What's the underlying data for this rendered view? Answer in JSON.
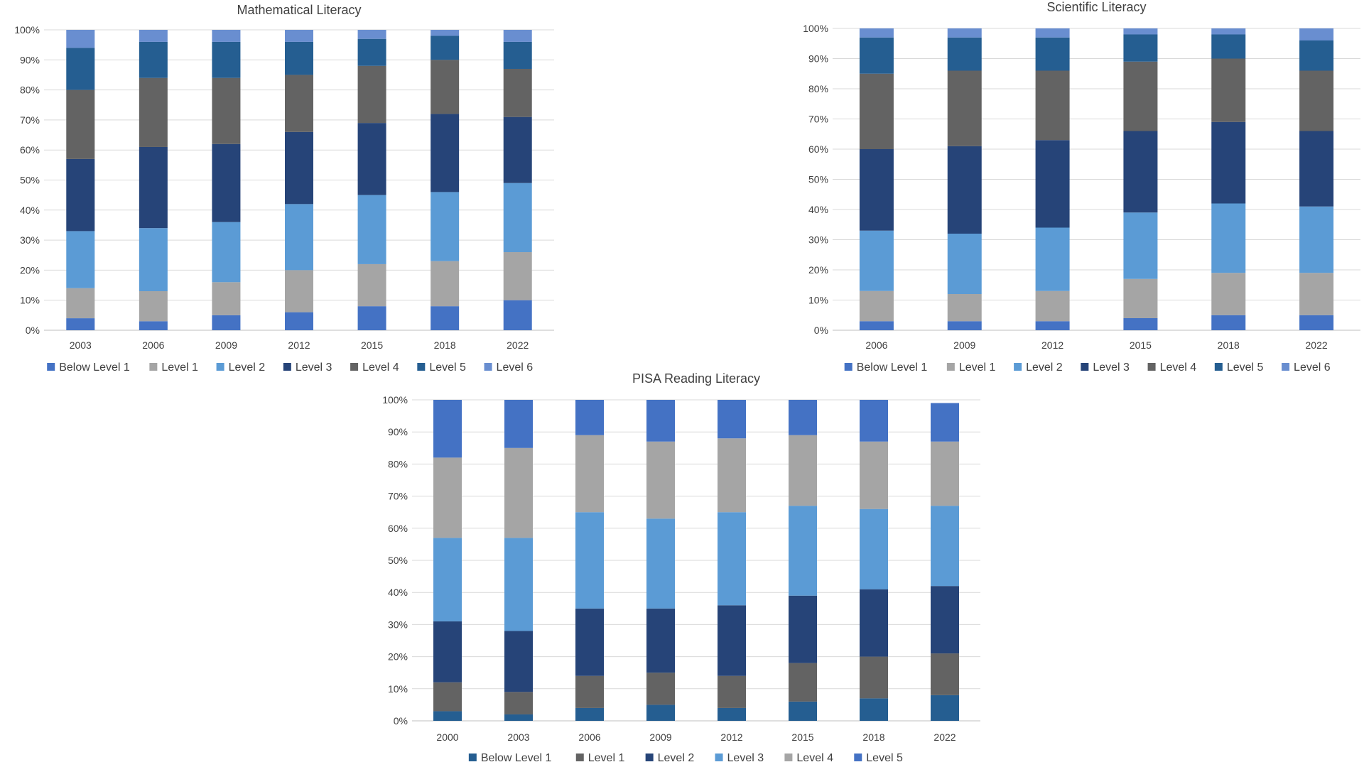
{
  "colors": {
    "below_level_1": "#4472C4",
    "level_1": "#A5A5A5",
    "level_2": "#5B9BD5",
    "level_3": "#264478",
    "level_4": "#636363",
    "level_5": "#255E91",
    "level_6": "#698ED0",
    "reading_below_level_1": "#255E91",
    "reading_level_1": "#636363",
    "reading_level_2": "#264478",
    "reading_level_3": "#5B9BD5",
    "reading_level_4": "#A5A5A5",
    "reading_level_5": "#4472C4",
    "gridline": "#D9D9D9",
    "axis": "#BFBFBF"
  },
  "chart_data": [
    {
      "id": "math",
      "type": "bar",
      "stacked": true,
      "title": "Mathematical Literacy",
      "categories": [
        "2003",
        "2006",
        "2009",
        "2012",
        "2015",
        "2018",
        "2022"
      ],
      "ylim": [
        0,
        100
      ],
      "y_ticks": [
        "0%",
        "10%",
        "20%",
        "30%",
        "40%",
        "50%",
        "60%",
        "70%",
        "80%",
        "90%",
        "100%"
      ],
      "grid": true,
      "legend_position": "bottom",
      "series": [
        {
          "name": "Below Level 1",
          "values": [
            4,
            3,
            5,
            6,
            8,
            8,
            10
          ]
        },
        {
          "name": "Level 1",
          "values": [
            10,
            10,
            11,
            14,
            14,
            15,
            16
          ]
        },
        {
          "name": "Level 2",
          "values": [
            19,
            21,
            20,
            22,
            23,
            23,
            23
          ]
        },
        {
          "name": "Level 3",
          "values": [
            24,
            27,
            26,
            24,
            24,
            26,
            22
          ]
        },
        {
          "name": "Level 4",
          "values": [
            23,
            23,
            22,
            19,
            19,
            18,
            16
          ]
        },
        {
          "name": "Level 5",
          "values": [
            14,
            12,
            12,
            11,
            9,
            8,
            9
          ]
        },
        {
          "name": "Level 6",
          "values": [
            6,
            4,
            4,
            4,
            3,
            2,
            4
          ]
        }
      ]
    },
    {
      "id": "science",
      "type": "bar",
      "stacked": true,
      "title": "Scientific Literacy",
      "categories": [
        "2006",
        "2009",
        "2012",
        "2015",
        "2018",
        "2022"
      ],
      "ylim": [
        0,
        100
      ],
      "y_ticks": [
        "0%",
        "10%",
        "20%",
        "30%",
        "40%",
        "50%",
        "60%",
        "70%",
        "80%",
        "90%",
        "100%"
      ],
      "grid": true,
      "legend_position": "bottom",
      "series": [
        {
          "name": "Below Level 1",
          "values": [
            3,
            3,
            3,
            4,
            5,
            5
          ]
        },
        {
          "name": "Level 1",
          "values": [
            10,
            9,
            10,
            13,
            14,
            14
          ]
        },
        {
          "name": "Level 2",
          "values": [
            20,
            20,
            21,
            22,
            23,
            22
          ]
        },
        {
          "name": "Level 3",
          "values": [
            27,
            29,
            29,
            27,
            27,
            25
          ]
        },
        {
          "name": "Level 4",
          "values": [
            25,
            25,
            23,
            23,
            21,
            20
          ]
        },
        {
          "name": "Level 5",
          "values": [
            12,
            11,
            11,
            9,
            8,
            10
          ]
        },
        {
          "name": "Level 6",
          "values": [
            3,
            3,
            3,
            2,
            2,
            4
          ]
        }
      ]
    },
    {
      "id": "reading",
      "type": "bar",
      "stacked": true,
      "title": "PISA Reading Literacy",
      "categories": [
        "2000",
        "2003",
        "2006",
        "2009",
        "2012",
        "2015",
        "2018",
        "2022"
      ],
      "ylim": [
        0,
        100
      ],
      "y_ticks": [
        "0%",
        "10%",
        "20%",
        "30%",
        "40%",
        "50%",
        "60%",
        "70%",
        "80%",
        "90%",
        "100%"
      ],
      "grid": true,
      "legend_position": "bottom",
      "series": [
        {
          "name": "Below Level 1",
          "values": [
            3,
            2,
            4,
            5,
            4,
            6,
            7,
            8
          ]
        },
        {
          "name": "Level 1",
          "values": [
            9,
            7,
            10,
            10,
            10,
            12,
            13,
            13
          ]
        },
        {
          "name": "Level 2",
          "values": [
            19,
            19,
            21,
            20,
            22,
            21,
            21,
            21
          ]
        },
        {
          "name": "Level 3",
          "values": [
            26,
            29,
            30,
            28,
            29,
            28,
            25,
            25
          ]
        },
        {
          "name": "Level 4",
          "values": [
            25,
            28,
            24,
            24,
            23,
            22,
            21,
            20
          ]
        },
        {
          "name": "Level 5",
          "values": [
            18,
            15,
            11,
            13,
            12,
            11,
            13,
            12
          ]
        }
      ]
    }
  ]
}
